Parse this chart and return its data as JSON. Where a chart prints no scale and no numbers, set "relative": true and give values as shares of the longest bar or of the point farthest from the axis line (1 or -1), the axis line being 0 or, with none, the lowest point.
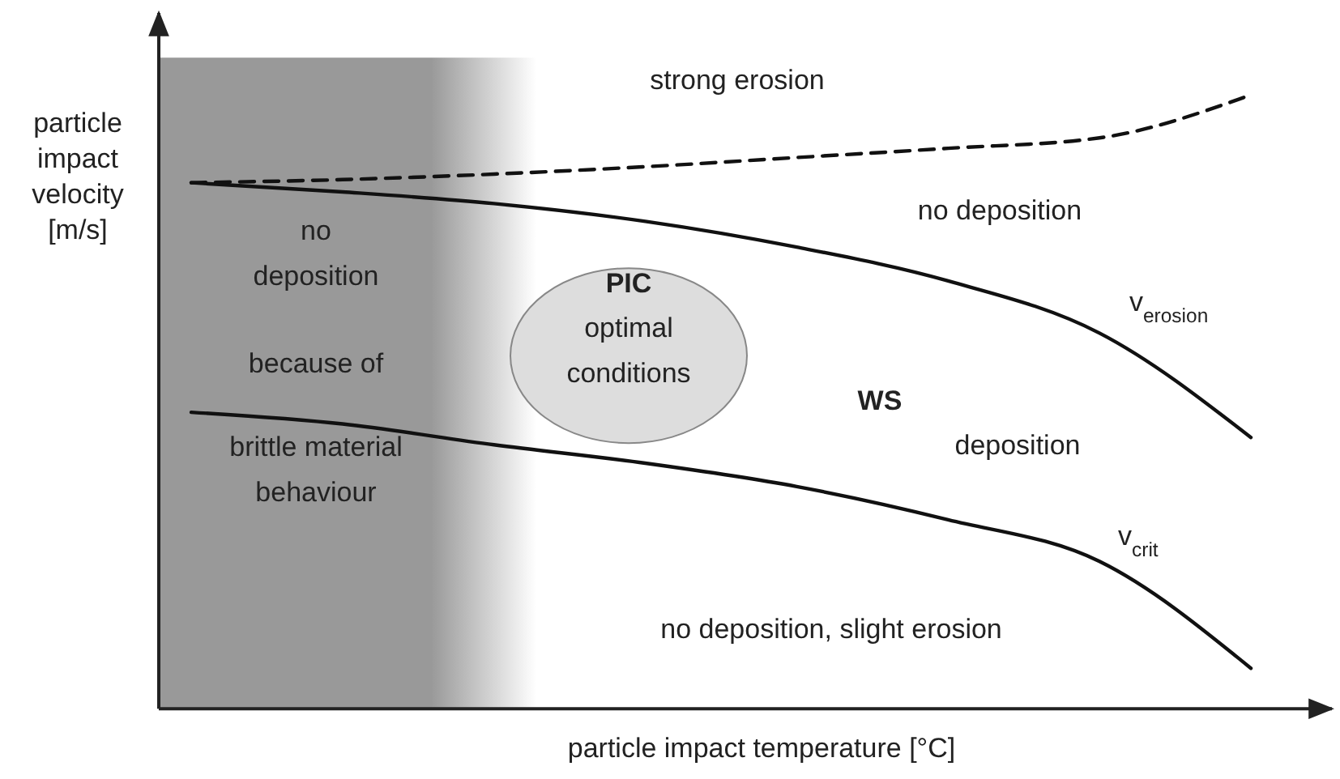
{
  "chart_data": {
    "type": "line",
    "relative": true,
    "xlabel": "particle impact temperature [°C]",
    "ylabel": "particle impact velocity [m/s]",
    "categories": [
      null,
      null,
      null,
      null,
      null,
      null,
      null,
      null
    ],
    "series": [
      {
        "values": [
          0.857,
          0.862,
          0.871,
          0.883,
          0.898,
          0.913,
          0.93,
          1
        ],
        "color": "#111111",
        "line_style": "dashed"
      },
      {
        "name": "v$_{erosion}$",
        "values": [
          0.857,
          0.842,
          0.823,
          0.794,
          0.752,
          0.697,
          0.612,
          0.442
        ],
        "color": "#111111",
        "line_style": "solid"
      },
      {
        "name": "v$_{crit}$",
        "values": [
          0.483,
          0.464,
          0.43,
          0.4,
          0.362,
          0.308,
          0.24,
          0.066
        ],
        "color": "#111111",
        "line_style": "solid"
      }
    ],
    "annotations": [
      "strong erosion",
      "no deposition",
      "no deposition",
      "because of",
      "brittle material behaviour",
      "PIC",
      "optimal conditions",
      "WS",
      "deposition",
      "no deposition, slight erosion"
    ]
  }
}
